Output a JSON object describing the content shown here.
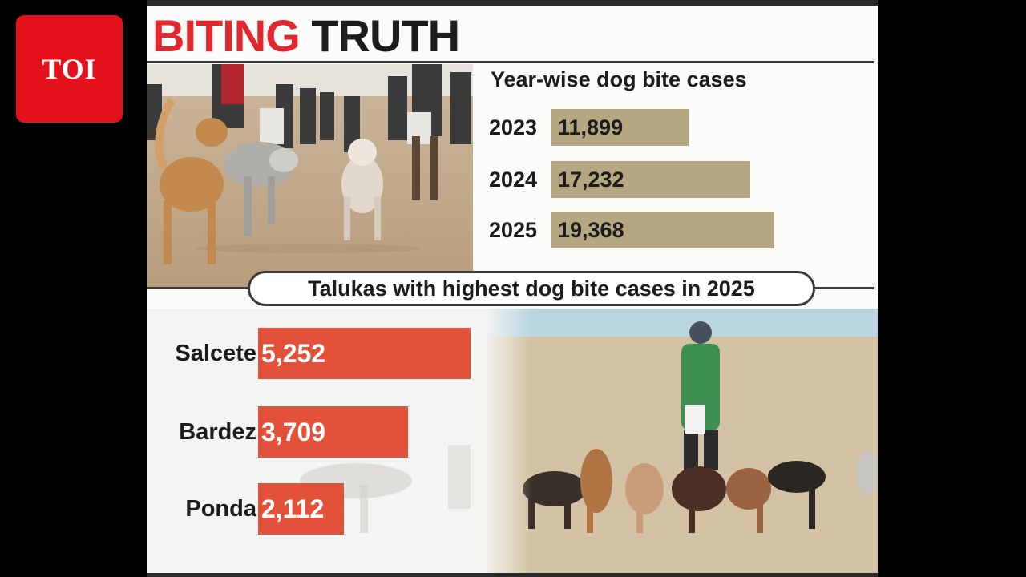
{
  "logo": {
    "text": "TOI"
  },
  "headline": {
    "red": "BITING",
    "black": "TRUTH"
  },
  "colors": {
    "yearly_bar": "#b5a782",
    "taluka_bar": "#e4513b",
    "headline_red": "#e2272e"
  },
  "chart_data": [
    {
      "type": "bar",
      "orientation": "horizontal",
      "title": "Year-wise dog bite cases",
      "categories": [
        "2023",
        "2024",
        "2025"
      ],
      "values": [
        11899,
        17232,
        19368
      ],
      "labels": [
        "11,899",
        "17,232",
        "19,368"
      ]
    },
    {
      "type": "bar",
      "orientation": "horizontal",
      "title": "Talukas with highest dog bite cases in 2025",
      "categories": [
        "Salcete",
        "Bardez",
        "Ponda"
      ],
      "values": [
        5252,
        3709,
        2112
      ],
      "labels": [
        "5,252",
        "3,709",
        "2,112"
      ]
    }
  ]
}
